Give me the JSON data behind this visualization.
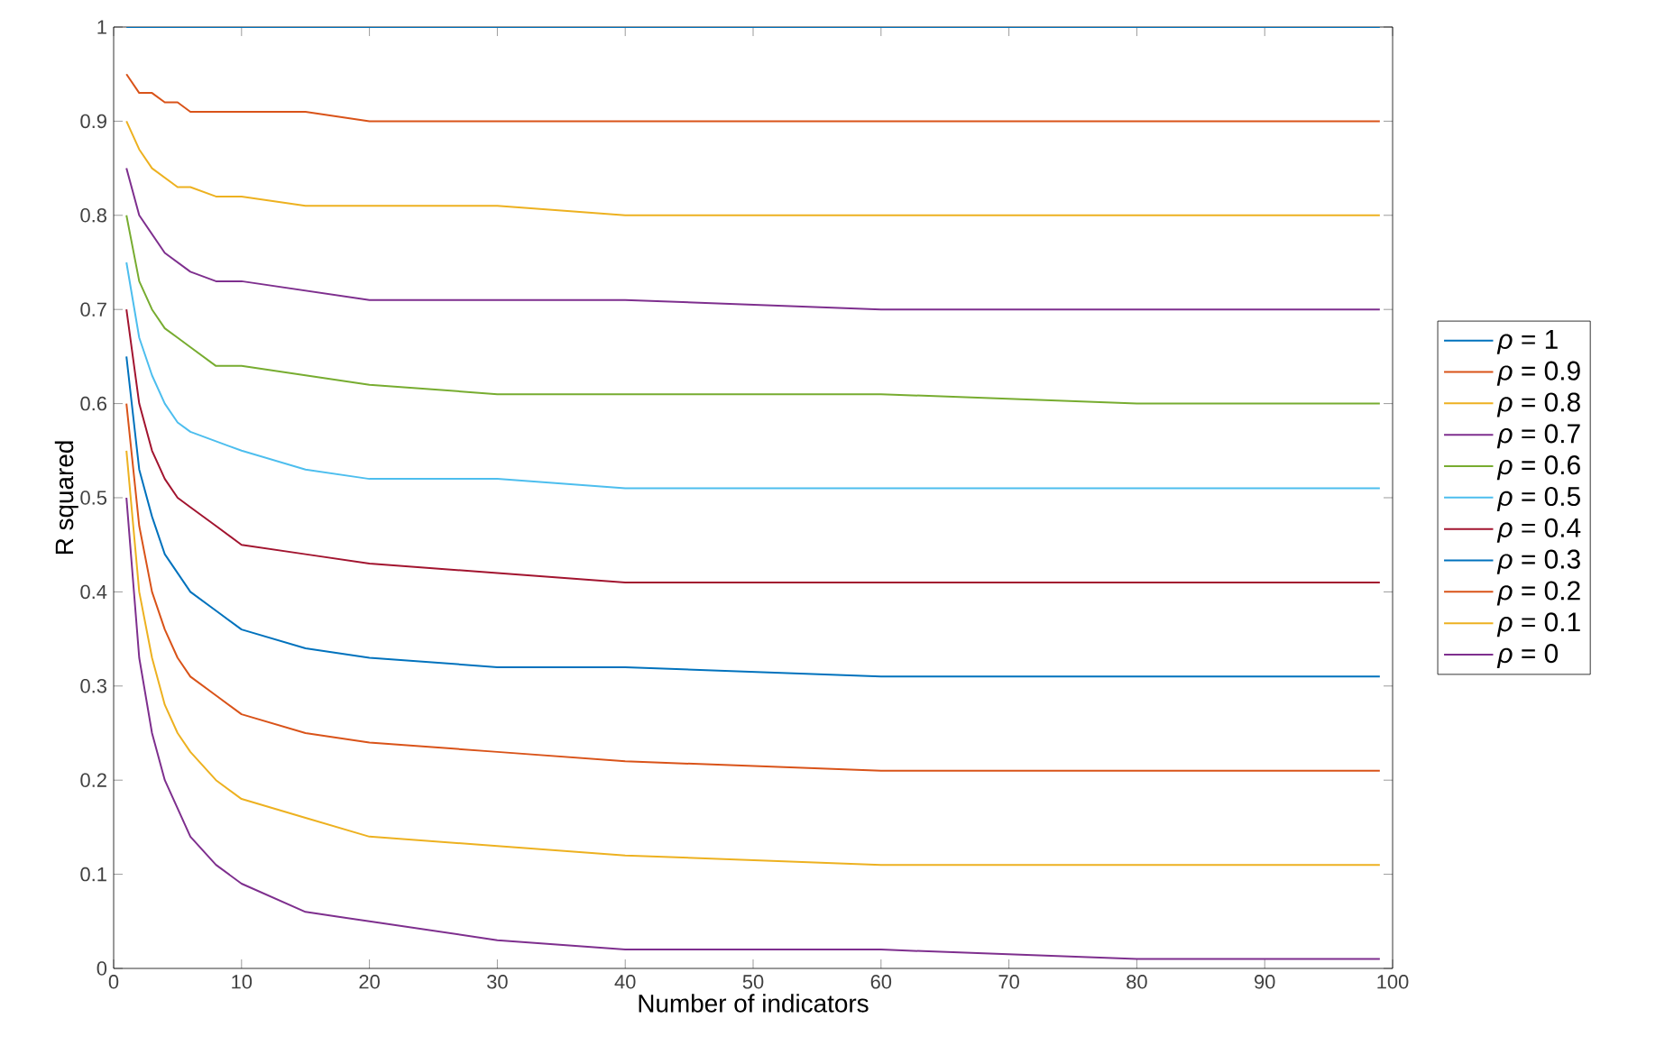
{
  "chart_data": {
    "type": "line",
    "xlabel": "Number of indicators",
    "ylabel": "R squared",
    "x": [
      1,
      2,
      3,
      4,
      5,
      6,
      8,
      10,
      15,
      20,
      30,
      40,
      60,
      80,
      99
    ],
    "xlim": [
      0,
      100
    ],
    "xticks": [
      0,
      10,
      20,
      30,
      40,
      50,
      60,
      70,
      80,
      90,
      100
    ],
    "ylim": [
      0,
      1
    ],
    "yticks": [
      0,
      0.1,
      0.2,
      0.3,
      0.4,
      0.5,
      0.6,
      0.7,
      0.8,
      0.9,
      1
    ],
    "legend": "right",
    "line_style": "solid",
    "marker": "none",
    "series": [
      {
        "name": "*ρ* = 1",
        "color": "#0072bd",
        "values": [
          1,
          1,
          1,
          1,
          1,
          1,
          1,
          1,
          1,
          1,
          1,
          1,
          1,
          1,
          1
        ]
      },
      {
        "name": "*ρ* = 0.9",
        "color": "#d95319",
        "values": [
          0.95,
          0.93,
          0.93,
          0.92,
          0.92,
          0.91,
          0.91,
          0.91,
          0.91,
          0.9,
          0.9,
          0.9,
          0.9,
          0.9,
          0.9
        ]
      },
      {
        "name": "*ρ* = 0.8",
        "color": "#edb120",
        "values": [
          0.9,
          0.87,
          0.85,
          0.84,
          0.83,
          0.83,
          0.82,
          0.82,
          0.81,
          0.81,
          0.81,
          0.8,
          0.8,
          0.8,
          0.8
        ]
      },
      {
        "name": "*ρ* = 0.7",
        "color": "#7e2f8e",
        "values": [
          0.85,
          0.8,
          0.78,
          0.76,
          0.75,
          0.74,
          0.73,
          0.73,
          0.72,
          0.71,
          0.71,
          0.71,
          0.7,
          0.7,
          0.7
        ]
      },
      {
        "name": "*ρ* = 0.6",
        "color": "#77ac30",
        "values": [
          0.8,
          0.73,
          0.7,
          0.68,
          0.67,
          0.66,
          0.64,
          0.64,
          0.63,
          0.62,
          0.61,
          0.61,
          0.61,
          0.6,
          0.6
        ]
      },
      {
        "name": "*ρ* = 0.5",
        "color": "#4dbeee",
        "values": [
          0.75,
          0.67,
          0.63,
          0.6,
          0.58,
          0.57,
          0.56,
          0.55,
          0.53,
          0.52,
          0.52,
          0.51,
          0.51,
          0.51,
          0.51
        ]
      },
      {
        "name": "*ρ* = 0.4",
        "color": "#a2142f",
        "values": [
          0.7,
          0.6,
          0.55,
          0.52,
          0.5,
          0.49,
          0.47,
          0.45,
          0.44,
          0.43,
          0.42,
          0.41,
          0.41,
          0.41,
          0.41
        ]
      },
      {
        "name": "*ρ* = 0.3",
        "color": "#0072bd",
        "values": [
          0.65,
          0.53,
          0.48,
          0.44,
          0.42,
          0.4,
          0.38,
          0.36,
          0.34,
          0.33,
          0.32,
          0.32,
          0.31,
          0.31,
          0.31
        ]
      },
      {
        "name": "*ρ* = 0.2",
        "color": "#d95319",
        "values": [
          0.6,
          0.47,
          0.4,
          0.36,
          0.33,
          0.31,
          0.29,
          0.27,
          0.25,
          0.24,
          0.23,
          0.22,
          0.21,
          0.21,
          0.21
        ]
      },
      {
        "name": "*ρ* = 0.1",
        "color": "#edb120",
        "values": [
          0.55,
          0.4,
          0.33,
          0.28,
          0.25,
          0.23,
          0.2,
          0.18,
          0.16,
          0.14,
          0.13,
          0.12,
          0.11,
          0.11,
          0.11
        ]
      },
      {
        "name": "*ρ* = 0",
        "color": "#7e2f8e",
        "values": [
          0.5,
          0.33,
          0.25,
          0.2,
          0.17,
          0.14,
          0.11,
          0.09,
          0.06,
          0.05,
          0.03,
          0.02,
          0.02,
          0.01,
          0.01
        ]
      }
    ]
  }
}
